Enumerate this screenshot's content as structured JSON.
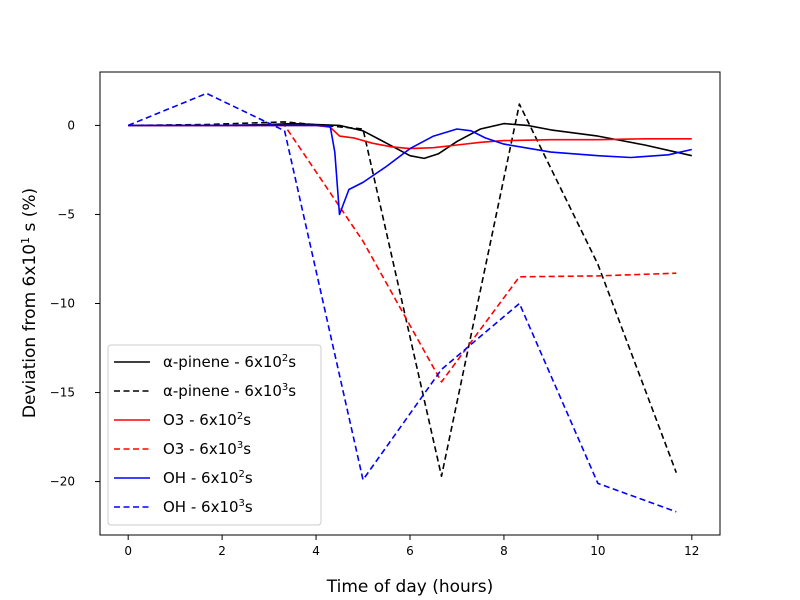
{
  "chart_data": {
    "type": "line",
    "xlabel": "Time of day (hours)",
    "ylabel": {
      "prefix": "Deviation from 6x10",
      "sup": "1",
      "suffix": " s (%)"
    },
    "xlim": [
      -0.6,
      12.6
    ],
    "ylim": [
      -23,
      3
    ],
    "xticks": [
      0,
      2,
      4,
      6,
      8,
      10,
      12
    ],
    "yticks": [
      0,
      -5,
      -10,
      -15,
      -20
    ],
    "grid": false,
    "legend_position": "lower-left",
    "series": [
      {
        "name": {
          "prefix": "α-pinene - 6x10",
          "sup": "2",
          "suffix": "s"
        },
        "color": "#000000",
        "dashed": false,
        "x": [
          0,
          1,
          2,
          3,
          3.5,
          4,
          4.5,
          5,
          5.5,
          6,
          6.3,
          6.6,
          7,
          7.5,
          8,
          8.5,
          9,
          10,
          11,
          12
        ],
        "y": [
          0,
          0,
          0,
          0.05,
          0.1,
          0.05,
          0,
          -0.3,
          -1.0,
          -1.7,
          -1.85,
          -1.6,
          -0.9,
          -0.2,
          0.1,
          0,
          -0.25,
          -0.6,
          -1.1,
          -1.7
        ]
      },
      {
        "name": {
          "prefix": "α-pinene - 6x10",
          "sup": "3",
          "suffix": "s"
        },
        "color": "#000000",
        "dashed": true,
        "x": [
          0,
          1.67,
          3.33,
          5.0,
          6.67,
          8.33,
          10.0,
          11.67
        ],
        "y": [
          0,
          0.05,
          0.2,
          -0.2,
          -19.7,
          1.2,
          -7.8,
          -19.5
        ]
      },
      {
        "name": {
          "prefix": "O3 - 6x10",
          "sup": "2",
          "suffix": "s"
        },
        "color": "#ff0000",
        "dashed": false,
        "x": [
          0,
          1,
          2,
          3,
          4,
          4.3,
          4.5,
          4.8,
          5.2,
          5.6,
          6,
          6.5,
          7,
          7.5,
          8,
          9,
          10,
          11,
          12
        ],
        "y": [
          0,
          0,
          0,
          0,
          0,
          -0.1,
          -0.6,
          -0.7,
          -1.0,
          -1.2,
          -1.3,
          -1.25,
          -1.1,
          -0.95,
          -0.85,
          -0.8,
          -0.8,
          -0.75,
          -0.75
        ]
      },
      {
        "name": {
          "prefix": "O3 - 6x10",
          "sup": "3",
          "suffix": "s"
        },
        "color": "#ff0000",
        "dashed": true,
        "x": [
          0,
          1.67,
          3.33,
          5.0,
          6.67,
          8.33,
          10.0,
          11.67
        ],
        "y": [
          0,
          0,
          0,
          -6.5,
          -14.4,
          -8.5,
          -8.45,
          -8.3
        ]
      },
      {
        "name": {
          "prefix": "OH - 6x10",
          "sup": "2",
          "suffix": "s"
        },
        "color": "#0000ff",
        "dashed": false,
        "x": [
          0,
          1,
          2,
          3,
          4,
          4.3,
          4.4,
          4.5,
          4.7,
          5.0,
          5.5,
          6,
          6.5,
          7,
          7.3,
          7.6,
          8,
          9,
          10,
          10.7,
          11.5,
          12
        ],
        "y": [
          0,
          0,
          0,
          0,
          0,
          -0.05,
          -1.5,
          -5.0,
          -3.6,
          -3.2,
          -2.3,
          -1.3,
          -0.6,
          -0.2,
          -0.3,
          -0.7,
          -1.05,
          -1.5,
          -1.7,
          -1.8,
          -1.65,
          -1.35
        ]
      },
      {
        "name": {
          "prefix": "OH - 6x10",
          "sup": "3",
          "suffix": "s"
        },
        "color": "#0000ff",
        "dashed": true,
        "x": [
          0,
          1.67,
          3.33,
          5.0,
          6.67,
          8.33,
          10.0,
          11.67
        ],
        "y": [
          0,
          1.8,
          -0.3,
          -19.9,
          -13.7,
          -10.0,
          -20.1,
          -21.7
        ]
      }
    ]
  }
}
